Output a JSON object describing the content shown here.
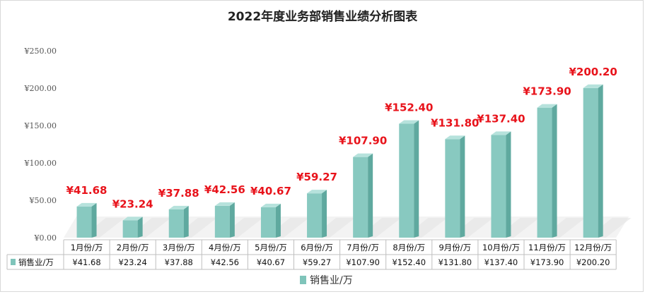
{
  "chart_data": {
    "type": "bar",
    "title": "2022年度业务部销售业绩分析图表",
    "categories": [
      "1月份/万",
      "2月份/万",
      "3月份/万",
      "4月份/万",
      "5月份/万",
      "6月份/万",
      "7月份/万",
      "8月份/万",
      "9月份/万",
      "10月份/万",
      "11月份/万",
      "12月份/万"
    ],
    "series": [
      {
        "name": "销售业/万",
        "values": [
          41.68,
          23.24,
          37.88,
          42.56,
          40.67,
          59.27,
          107.9,
          152.4,
          131.8,
          137.4,
          173.9,
          200.2
        ],
        "labels": [
          "¥41.68",
          "¥23.24",
          "¥37.88",
          "¥42.56",
          "¥40.67",
          "¥59.27",
          "¥107.90",
          "¥152.40",
          "¥131.80",
          "¥137.40",
          "¥173.90",
          "¥200.20"
        ],
        "table_values": [
          "¥41.68",
          "¥23.24",
          "¥37.88",
          "¥42.56",
          "¥40.67",
          "¥59.27",
          "¥107.90",
          "¥152.40",
          "¥131.80",
          "¥137.40",
          "¥173.90",
          "¥200.20"
        ]
      }
    ],
    "y_ticks": [
      "¥0.00",
      "¥50.00",
      "¥100.00",
      "¥150.00",
      "¥200.00",
      "¥250.00"
    ],
    "ylim": [
      0,
      250
    ],
    "legend": "bottom",
    "grid": false,
    "data_table": true,
    "colors": {
      "bar_front": "#88c9c0",
      "bar_side": "#5fa99f",
      "bar_top": "#b6e2dc",
      "label": "#e8131b",
      "legend_swatch": "#7fc4ba"
    }
  }
}
